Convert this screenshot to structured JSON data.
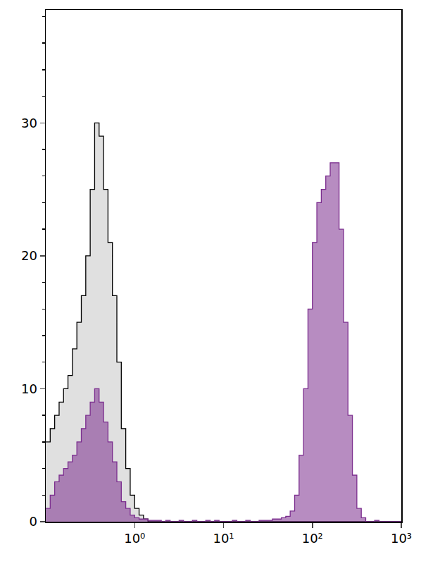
{
  "chart_data": {
    "type": "histogram",
    "log": "x",
    "grid": false,
    "tick_labels": true,
    "xlim": [
      0.1,
      1000
    ],
    "xticks": [
      {
        "value": 1,
        "label": "10⁰"
      },
      {
        "value": 10,
        "label": "10¹"
      },
      {
        "value": 100,
        "label": "10²"
      },
      {
        "value": 1000,
        "label": "10³"
      }
    ],
    "ylim": [
      0,
      38.5
    ],
    "yticks": [
      0,
      10,
      20,
      30
    ],
    "bins": [
      0.1,
      0.1122,
      0.1259,
      0.1413,
      0.1585,
      0.1778,
      0.1995,
      0.2239,
      0.2512,
      0.2818,
      0.3162,
      0.3548,
      0.3981,
      0.4467,
      0.5012,
      0.5623,
      0.631,
      0.7079,
      0.7943,
      0.8913,
      1,
      1.122,
      1.259,
      1.413,
      1.585,
      1.778,
      1.995,
      2.239,
      2.512,
      2.818,
      3.162,
      3.548,
      3.981,
      4.467,
      5.012,
      5.623,
      6.31,
      7.079,
      7.943,
      8.913,
      10,
      11.22,
      12.59,
      14.13,
      15.85,
      17.78,
      19.95,
      22.39,
      25.12,
      28.18,
      31.62,
      35.48,
      39.81,
      44.67,
      50.12,
      56.23,
      63.1,
      70.79,
      79.43,
      89.13,
      100,
      112.2,
      125.9,
      141.3,
      158.5,
      177.8,
      199.5,
      223.9,
      251.2,
      281.8,
      316.2,
      354.8,
      398.1,
      446.7,
      501.2,
      562.3,
      631,
      707.9,
      794.3,
      891.3,
      1000
    ],
    "series": [
      {
        "color": "#e0e0e0",
        "line_style": "black",
        "values": [
          6,
          7,
          8,
          9,
          10,
          11,
          13,
          15,
          17,
          20,
          25,
          30,
          29,
          25,
          21,
          17,
          12,
          7,
          4,
          2,
          1,
          0.5,
          0.2,
          0,
          0,
          0,
          0,
          0,
          0,
          0,
          0,
          0,
          0,
          0,
          0,
          0,
          0,
          0,
          0,
          0,
          0,
          0,
          0,
          0,
          0,
          0,
          0,
          0,
          0,
          0,
          0,
          0,
          0,
          0,
          0,
          0,
          0,
          0,
          0,
          0,
          0,
          0,
          0,
          0,
          0,
          0,
          0,
          0,
          0,
          0,
          0,
          0,
          0,
          0,
          0,
          0,
          0,
          0,
          0,
          0
        ]
      },
      {
        "color": "#7b2d8e",
        "line_style": "solid",
        "values": [
          1,
          2,
          3,
          3.5,
          4,
          4.5,
          5,
          6,
          7,
          8,
          9,
          10,
          9,
          7.5,
          6,
          4.5,
          3,
          1.5,
          1,
          0.5,
          0.3,
          0.2,
          0.2,
          0.1,
          0.1,
          0.1,
          0,
          0.1,
          0,
          0,
          0.1,
          0,
          0,
          0.1,
          0,
          0,
          0.1,
          0,
          0.1,
          0,
          0,
          0,
          0.1,
          0,
          0,
          0.1,
          0,
          0,
          0.1,
          0.1,
          0.1,
          0.2,
          0.2,
          0.3,
          0.4,
          0.8,
          2,
          5,
          10,
          16,
          21,
          24,
          25,
          26,
          27,
          27,
          22,
          15,
          8,
          3.5,
          1,
          0.3,
          0,
          0,
          0.1,
          0,
          0,
          0,
          0,
          0
        ]
      }
    ]
  }
}
